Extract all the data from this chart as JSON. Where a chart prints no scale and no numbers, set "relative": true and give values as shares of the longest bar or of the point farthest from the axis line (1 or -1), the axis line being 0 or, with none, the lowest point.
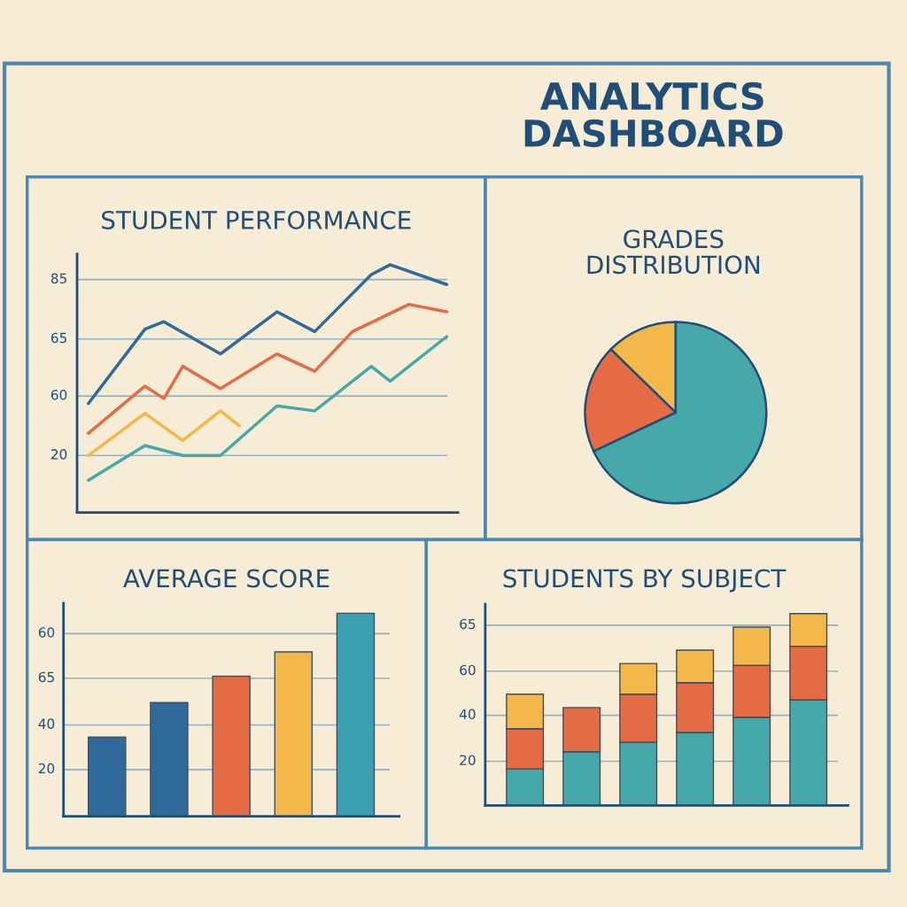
{
  "chart_data": [
    {
      "type": "other",
      "title": "ANALYTICS\nDASHBOARD"
    },
    {
      "type": "line",
      "title": "STUDENT PERFORMANCE",
      "relative": true,
      "categories": [
        null,
        null,
        null,
        null,
        null,
        null,
        null,
        null,
        null,
        null,
        null,
        null,
        null,
        null,
        null,
        null,
        null,
        null,
        null,
        null
      ],
      "marker": "none",
      "line_style": "solid",
      "ref_lines": [
        {
          "axis": "y",
          "value": 0.23
        },
        {
          "axis": "y",
          "value": 0.47
        },
        {
          "axis": "y",
          "value": 0.7
        },
        {
          "axis": "y",
          "value": 0.94
        }
      ],
      "annotations": [
        "20",
        "60",
        "65",
        "85"
      ],
      "series": [
        {
          "color": "#2f6a9a",
          "values": [
            0.44,
            null,
            null,
            0.74,
            0.77,
            null,
            null,
            0.64,
            null,
            null,
            0.81,
            null,
            0.73,
            null,
            null,
            0.96,
            1.0,
            null,
            null,
            0.92
          ]
        },
        {
          "color": "#e56b45",
          "values": [
            0.32,
            null,
            null,
            0.51,
            0.46,
            0.59,
            null,
            0.5,
            null,
            null,
            0.64,
            null,
            0.57,
            null,
            0.73,
            null,
            null,
            0.84,
            null,
            0.81
          ]
        },
        {
          "color": "#f3b74a",
          "values": [
            0.23,
            null,
            null,
            0.4,
            null,
            0.29,
            null,
            0.41,
            0.35,
            null,
            null,
            null,
            null,
            null,
            null,
            null,
            null,
            null,
            null,
            null
          ]
        },
        {
          "color": "#46a8a8",
          "values": [
            0.13,
            null,
            null,
            0.27,
            null,
            0.23,
            null,
            0.23,
            null,
            null,
            0.43,
            null,
            0.41,
            null,
            null,
            0.59,
            0.53,
            null,
            null,
            0.71
          ]
        }
      ]
    },
    {
      "type": "pie",
      "title": "GRADES\nDISTRIBUTION",
      "categories": [
        null,
        null,
        null
      ],
      "values": [
        12.7,
        19.3,
        68.0
      ],
      "colors": [
        "#f3b74a",
        "#e56b45",
        "#46a8a8"
      ]
    },
    {
      "type": "bar",
      "title": "AVERAGE SCORE",
      "relative": true,
      "categories": [
        null,
        null,
        null,
        null,
        null
      ],
      "values": [
        0.39,
        0.56,
        0.69,
        0.81,
        1.0
      ],
      "colors": [
        "#2f6a9a",
        "#2f6a9a",
        "#e56b45",
        "#f3b74a",
        "#3a9fb0"
      ],
      "ref_lines": [
        {
          "axis": "y",
          "value": 0.23
        },
        {
          "axis": "y",
          "value": 0.45
        },
        {
          "axis": "y",
          "value": 0.68
        },
        {
          "axis": "y",
          "value": 0.9
        }
      ],
      "annotations": [
        "20",
        "40",
        "65",
        "60"
      ]
    },
    {
      "type": "bar",
      "title": "STUDENTS BY SUBJECT",
      "relative": true,
      "stacked": true,
      "categories": [
        null,
        null,
        null,
        null,
        null,
        null
      ],
      "ref_lines": [
        {
          "axis": "y",
          "value": 0.23
        },
        {
          "axis": "y",
          "value": 0.47
        },
        {
          "axis": "y",
          "value": 0.7
        },
        {
          "axis": "y",
          "value": 0.94
        }
      ],
      "annotations": [
        "20",
        "40",
        "60",
        "65"
      ],
      "series": [
        {
          "color": "#46a8a8",
          "values": [
            0.19,
            0.28,
            0.33,
            0.38,
            0.46,
            0.55
          ]
        },
        {
          "color": "#e56b45",
          "values": [
            0.21,
            0.23,
            0.25,
            0.26,
            0.27,
            0.28
          ]
        },
        {
          "color": "#f3b74a",
          "values": [
            0.18,
            null,
            0.16,
            0.17,
            0.2,
            0.17
          ]
        }
      ]
    }
  ]
}
